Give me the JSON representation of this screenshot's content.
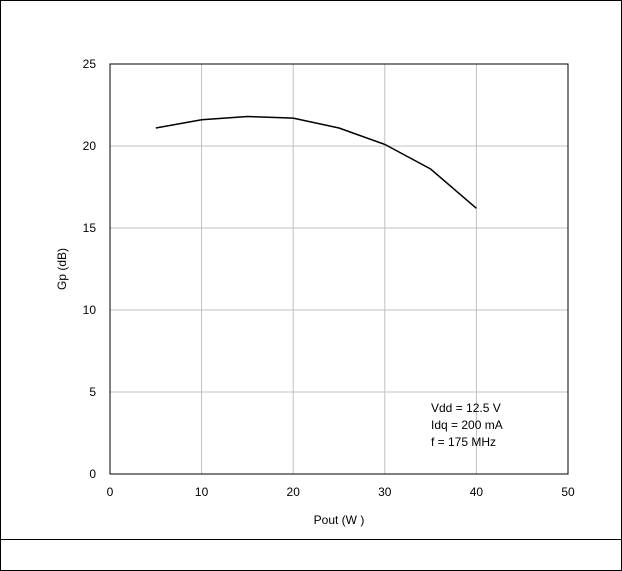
{
  "chart_data": {
    "type": "line",
    "title": "",
    "xlabel": "Pout (W )",
    "ylabel": "Gp (dB)",
    "xlim": [
      0,
      50
    ],
    "ylim": [
      0,
      25
    ],
    "x_ticks": [
      "0",
      "10",
      "20",
      "30",
      "40",
      "50"
    ],
    "y_ticks": [
      "0",
      "5",
      "10",
      "15",
      "20",
      "25"
    ],
    "grid": true,
    "series": [
      {
        "x": [
          5,
          10,
          15,
          20,
          25,
          30,
          35,
          40
        ],
        "y": [
          21.1,
          21.6,
          21.8,
          21.7,
          21.1,
          20.1,
          18.6,
          16.2
        ]
      }
    ],
    "annotations": [
      "Vdd = 12.5 V",
      "Idq = 200 mA",
      "f = 175 MHz"
    ],
    "colors": {
      "line": "#000000",
      "grid": "#c0c0c0",
      "frame": "#000000"
    }
  }
}
